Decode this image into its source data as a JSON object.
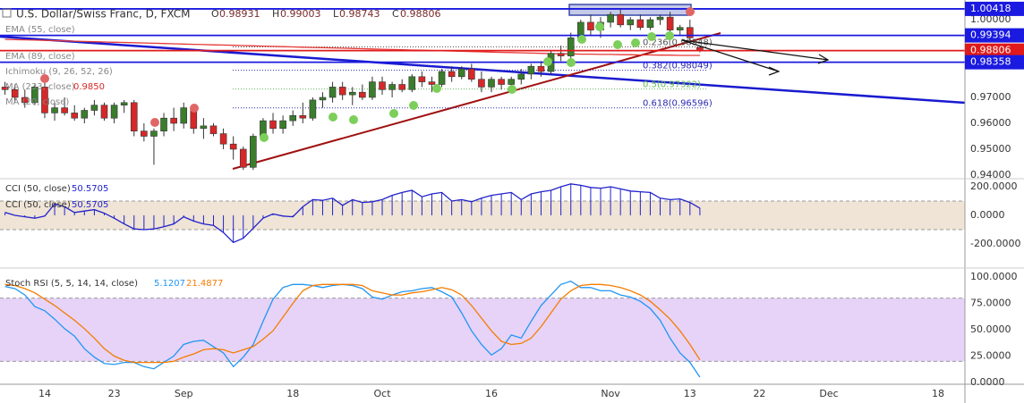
{
  "chart_data": [
    {
      "type": "candlestick",
      "title": "U.S. Dollar/Swiss Franc, D, FXCM",
      "ohlc_labels": [
        "O",
        "H",
        "L",
        "C"
      ],
      "categories": [
        null,
        null,
        null,
        null,
        "14",
        null,
        null,
        null,
        null,
        null,
        null,
        "23",
        null,
        null,
        null,
        null,
        null,
        null,
        "Sep",
        null,
        null,
        null,
        null,
        null,
        null,
        null,
        null,
        null,
        null,
        "18",
        null,
        null,
        null,
        null,
        null,
        null,
        null,
        null,
        "Oct",
        null,
        null,
        null,
        null,
        null,
        null,
        null,
        null,
        null,
        null,
        "16",
        null,
        null,
        null,
        null,
        null,
        null,
        null,
        null,
        null,
        null,
        null,
        "Nov",
        null,
        null,
        null,
        null,
        null,
        null,
        null,
        "13",
        null,
        null,
        null,
        null,
        null,
        null,
        "22",
        null,
        null,
        null,
        null,
        null,
        null,
        "Dec",
        null,
        null,
        null,
        null,
        null,
        null,
        null,
        null,
        null,
        null,
        "18"
      ],
      "ohlc": [
        [
          0.974,
          0.976,
          0.971,
          0.973
        ],
        [
          0.973,
          0.975,
          0.968,
          0.97
        ],
        [
          0.97,
          0.973,
          0.966,
          0.968
        ],
        [
          0.968,
          0.975,
          0.967,
          0.974
        ],
        [
          0.974,
          0.976,
          0.962,
          0.964
        ],
        [
          0.964,
          0.968,
          0.961,
          0.966
        ],
        [
          0.966,
          0.97,
          0.963,
          0.964
        ],
        [
          0.964,
          0.967,
          0.961,
          0.962
        ],
        [
          0.962,
          0.966,
          0.96,
          0.965
        ],
        [
          0.965,
          0.969,
          0.963,
          0.967
        ],
        [
          0.967,
          0.968,
          0.961,
          0.962
        ],
        [
          0.962,
          0.968,
          0.96,
          0.967
        ],
        [
          0.967,
          0.969,
          0.964,
          0.968
        ],
        [
          0.968,
          0.969,
          0.955,
          0.957
        ],
        [
          0.957,
          0.96,
          0.953,
          0.955
        ],
        [
          0.955,
          0.958,
          0.944,
          0.957
        ],
        [
          0.957,
          0.964,
          0.955,
          0.962
        ],
        [
          0.962,
          0.966,
          0.957,
          0.96
        ],
        [
          0.96,
          0.968,
          0.958,
          0.966
        ],
        [
          0.966,
          0.967,
          0.956,
          0.958
        ],
        [
          0.958,
          0.962,
          0.954,
          0.959
        ],
        [
          0.959,
          0.96,
          0.955,
          0.956
        ],
        [
          0.956,
          0.958,
          0.95,
          0.952
        ],
        [
          0.952,
          0.955,
          0.946,
          0.95
        ],
        [
          0.95,
          0.951,
          0.942,
          0.943
        ],
        [
          0.943,
          0.956,
          0.942,
          0.955
        ],
        [
          0.955,
          0.962,
          0.953,
          0.961
        ],
        [
          0.961,
          0.964,
          0.956,
          0.958
        ],
        [
          0.958,
          0.963,
          0.956,
          0.961
        ],
        [
          0.961,
          0.965,
          0.959,
          0.963
        ],
        [
          0.963,
          0.968,
          0.96,
          0.962
        ],
        [
          0.962,
          0.97,
          0.961,
          0.969
        ],
        [
          0.969,
          0.972,
          0.966,
          0.97
        ],
        [
          0.97,
          0.976,
          0.968,
          0.974
        ],
        [
          0.974,
          0.976,
          0.969,
          0.971
        ],
        [
          0.971,
          0.974,
          0.967,
          0.972
        ],
        [
          0.972,
          0.975,
          0.969,
          0.97
        ],
        [
          0.97,
          0.978,
          0.969,
          0.976
        ],
        [
          0.976,
          0.978,
          0.971,
          0.973
        ],
        [
          0.973,
          0.976,
          0.97,
          0.975
        ],
        [
          0.975,
          0.977,
          0.972,
          0.973
        ],
        [
          0.973,
          0.979,
          0.972,
          0.978
        ],
        [
          0.978,
          0.98,
          0.974,
          0.976
        ],
        [
          0.976,
          0.978,
          0.972,
          0.975
        ],
        [
          0.975,
          0.981,
          0.974,
          0.98
        ],
        [
          0.98,
          0.982,
          0.976,
          0.978
        ],
        [
          0.978,
          0.982,
          0.977,
          0.981
        ],
        [
          0.981,
          0.983,
          0.976,
          0.977
        ],
        [
          0.977,
          0.98,
          0.972,
          0.974
        ],
        [
          0.974,
          0.978,
          0.972,
          0.977
        ],
        [
          0.977,
          0.978,
          0.973,
          0.975
        ],
        [
          0.975,
          0.978,
          0.972,
          0.977
        ],
        [
          0.977,
          0.981,
          0.975,
          0.979
        ],
        [
          0.979,
          0.983,
          0.977,
          0.982
        ],
        [
          0.982,
          0.984,
          0.978,
          0.98
        ],
        [
          0.98,
          0.988,
          0.979,
          0.987
        ],
        [
          0.987,
          0.99,
          0.984,
          0.986
        ],
        [
          0.986,
          0.995,
          0.985,
          0.993
        ],
        [
          0.993,
          1.0,
          0.991,
          0.999
        ],
        [
          0.999,
          1.002,
          0.994,
          0.996
        ],
        [
          0.996,
          1.001,
          0.993,
          0.999
        ],
        [
          0.999,
          1.003,
          0.997,
          1.002
        ],
        [
          1.002,
          1.004,
          0.997,
          0.998
        ],
        [
          0.998,
          1.001,
          0.996,
          1.0
        ],
        [
          1.0,
          1.002,
          0.996,
          0.997
        ],
        [
          0.997,
          1.001,
          0.996,
          1.0
        ],
        [
          1.0,
          1.002,
          0.998,
          1.001
        ],
        [
          1.001,
          1.003,
          0.995,
          0.996
        ],
        [
          0.996,
          0.998,
          0.994,
          0.997
        ],
        [
          0.997,
          1.0,
          0.992,
          0.993
        ],
        [
          0.98931,
          0.99003,
          0.98743,
          0.98806
        ],
        null,
        null,
        null,
        null,
        null,
        null,
        null,
        null,
        null,
        null,
        null,
        null,
        null,
        null,
        null,
        null,
        null,
        null,
        null,
        null,
        null,
        null,
        null,
        null
      ],
      "up_color": "#3a7d2c",
      "down_color": "#d62828",
      "ylim": [
        0.9393,
        1.0076
      ],
      "yticks": [
        {
          "value": 1.0,
          "label": "1.00000"
        },
        {
          "value": 0.97,
          "label": "0.97000"
        },
        {
          "value": 0.96,
          "label": "0.96000"
        },
        {
          "value": 0.95,
          "label": "0.95000"
        },
        {
          "value": 0.94,
          "label": "0.94000"
        }
      ],
      "series": [
        {
          "name": "EMA (89, close)",
          "color": "#e53935",
          "values": [
            0.9924,
            0.9923,
            0.9922,
            0.9921,
            0.992,
            0.9919,
            0.9918,
            0.9917,
            0.9916,
            0.9915,
            0.9914,
            0.9913,
            0.9912,
            0.9911,
            0.991,
            0.9909,
            0.9908,
            0.9907,
            0.9906,
            0.9905,
            0.9904,
            0.9903,
            0.9902,
            0.9901,
            0.99,
            0.9899,
            0.9898,
            0.9897,
            0.9896,
            0.9895,
            0.9894,
            0.9893,
            0.9892,
            0.9891,
            0.989,
            0.9889,
            0.9888,
            0.9887,
            0.9886,
            0.9885,
            0.9884,
            0.9883,
            0.9882,
            0.9881,
            0.988,
            0.9879,
            0.9878,
            0.9877,
            0.9876,
            0.9875,
            0.9874,
            0.9873,
            0.9872,
            0.9871,
            0.987,
            0.9869,
            0.9868,
            0.9868,
            0.9867,
            0.9867,
            0.9866,
            0.9866,
            0.9865,
            0.9865,
            0.9864,
            0.9864,
            0.9863,
            0.9863,
            0.9862,
            0.9862,
            0.9862,
            null,
            null,
            null,
            null,
            null,
            null,
            null,
            null,
            null,
            null,
            null,
            null,
            null,
            null,
            null,
            null,
            null,
            null,
            null,
            null,
            null,
            null,
            null,
            null
          ]
        }
      ],
      "overlays": [
        {
          "name": "EMA (55, close)"
        },
        {
          "name": "Ichimoku (9, 26, 52, 26)"
        },
        {
          "name": "MA (233, close)",
          "reading": "0.9850"
        },
        {
          "name": "MA (20, close)"
        }
      ],
      "levels": [
        {
          "value": 1.00418,
          "color": "#1a1ae0"
        },
        {
          "value": 0.99394,
          "color": "#1a1ae0"
        },
        {
          "value": 0.98806,
          "color": "#e01a1a"
        },
        {
          "value": 0.98358,
          "color": "#1a1ae0"
        }
      ],
      "fib": [
        {
          "label": "0.236(0.98948)",
          "value": 0.98948,
          "color": "#555555"
        },
        {
          "label": "0.382(0.98049)",
          "value": 0.98049,
          "color": "#2a2ab0"
        },
        {
          "label": "0.5(0.97322)",
          "value": 0.97322,
          "color": "#5cb85c"
        },
        {
          "label": "0.618(0.96596)",
          "value": 0.96596,
          "color": "#2a2ab0"
        }
      ]
    },
    {
      "type": "line",
      "series": [
        {
          "name": "CCI (50, close)",
          "color": "#2222cc",
          "values": [
            20,
            0,
            -10,
            -20,
            -5,
            80,
            60,
            20,
            30,
            40,
            15,
            -20,
            -60,
            -95,
            -100,
            -95,
            -80,
            -60,
            -10,
            -40,
            -60,
            -70,
            -120,
            -190,
            -160,
            -90,
            -20,
            10,
            -5,
            -10,
            60,
            110,
            105,
            120,
            70,
            110,
            90,
            95,
            110,
            140,
            160,
            175,
            130,
            150,
            160,
            100,
            110,
            95,
            120,
            140,
            150,
            160,
            110,
            150,
            165,
            175,
            200,
            220,
            210,
            195,
            190,
            200,
            185,
            170,
            165,
            160,
            120,
            110,
            115,
            90,
            50.5705,
            null,
            null,
            null,
            null,
            null,
            null,
            null,
            null,
            null,
            null,
            null,
            null,
            null,
            null,
            null,
            null,
            null,
            null,
            null,
            null,
            null,
            null,
            null,
            null
          ]
        }
      ],
      "stems": true,
      "band": [
        -100,
        100
      ],
      "band_color": "#efe4d5",
      "ylim": [
        -369,
        256
      ],
      "yticks": [
        {
          "value": 200,
          "label": "200.0000"
        },
        {
          "value": 0,
          "label": "0.0000"
        },
        {
          "value": -200,
          "label": "-200.0000"
        }
      ]
    },
    {
      "type": "line",
      "title": "Stoch RSI (5, 5, 14, 14, close)",
      "series": [
        {
          "color": "#2196f3",
          "values": [
            91,
            89,
            83,
            72,
            68,
            60,
            51,
            44,
            32,
            24,
            18,
            17,
            19,
            19,
            15,
            13,
            19,
            25,
            36,
            39,
            40,
            34,
            28,
            15,
            24,
            36,
            58,
            79,
            90,
            93,
            93,
            92,
            90,
            92,
            93,
            92,
            89,
            81,
            79,
            83,
            86,
            87,
            89,
            90,
            86,
            81,
            66,
            49,
            36,
            26,
            32,
            45,
            42,
            58,
            73,
            83,
            93,
            96,
            90,
            90,
            87,
            87,
            83,
            81,
            77,
            70,
            59,
            42,
            28,
            19,
            5.1207,
            null,
            null,
            null,
            null,
            null,
            null,
            null,
            null,
            null,
            null,
            null,
            null,
            null,
            null,
            null,
            null,
            null,
            null,
            null,
            null,
            null,
            null,
            null,
            null
          ]
        },
        {
          "color": "#f57c00",
          "values": [
            93,
            92,
            89,
            85,
            79,
            73,
            66,
            59,
            51,
            42,
            32,
            25,
            21,
            19,
            19,
            19,
            19,
            20,
            24,
            27,
            31,
            32,
            31,
            28,
            31,
            34,
            41,
            49,
            62,
            75,
            87,
            92,
            93,
            93,
            93,
            93,
            92,
            87,
            85,
            83,
            83,
            85,
            86,
            88,
            90,
            88,
            83,
            73,
            61,
            49,
            39,
            36,
            37,
            42,
            53,
            66,
            79,
            87,
            92,
            93,
            93,
            92,
            90,
            87,
            83,
            77,
            69,
            60,
            49,
            36,
            21.4877,
            null,
            null,
            null,
            null,
            null,
            null,
            null,
            null,
            null,
            null,
            null,
            null,
            null,
            null,
            null,
            null,
            null,
            null,
            null,
            null,
            null,
            null,
            null,
            null
          ]
        }
      ],
      "band": [
        20,
        80
      ],
      "band_color": "#e6d3f7",
      "ylim": [
        -1.7,
        108.5
      ],
      "yticks": [
        {
          "value": 100,
          "label": "100.0000"
        },
        {
          "value": 75,
          "label": "75.0000"
        },
        {
          "value": 50,
          "label": "50.0000"
        },
        {
          "value": 25,
          "label": "25.0000"
        },
        {
          "value": 0,
          "label": "0.0000"
        }
      ]
    }
  ]
}
